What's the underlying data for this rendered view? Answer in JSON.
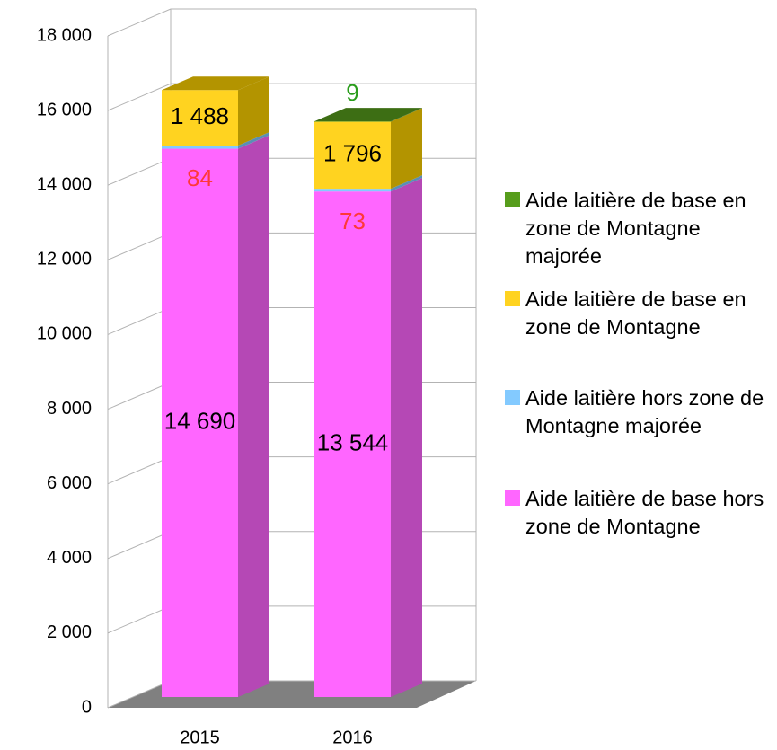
{
  "chart_data": {
    "type": "bar3d_stacked",
    "categories": [
      "2015",
      "2016"
    ],
    "series": [
      {
        "name": "Aide laitière de base hors zone de Montagne",
        "color": "#ff66ff",
        "side_color": "#b548b5",
        "label_color": "#000000",
        "values": [
          14690,
          13544
        ],
        "value_labels": [
          "14 690",
          "13 544"
        ]
      },
      {
        "name": "Aide laitière hors zone de Montagne majorée",
        "color": "#83caff",
        "side_color": "#5a8fb5",
        "label_color": "#ff3838",
        "values": [
          84,
          73
        ]
      },
      {
        "name": "Aide laitière de base en zone de Montagne",
        "color": "#ffd320",
        "side_color": "#b39400",
        "label_color": "#000000",
        "values": [
          1488,
          1796
        ],
        "value_labels": [
          "1 488",
          "1 796"
        ]
      },
      {
        "name": "Aide laitière de base en zone de Montagne majorée",
        "color": "#579d1c",
        "side_color": "#3d6e14",
        "label_color": "#2a9d1c",
        "values": [
          null,
          9
        ]
      }
    ],
    "ylim": [
      0,
      18000
    ],
    "yticks": [
      0,
      {
        "value": 2000,
        "label": "2 000"
      },
      {
        "value": 4000,
        "label": "4 000"
      },
      {
        "value": 6000,
        "label": "6 000"
      },
      {
        "value": 8000,
        "label": "8 000"
      },
      {
        "value": 10000,
        "label": "10 000"
      },
      {
        "value": 12000,
        "label": "12 000"
      },
      {
        "value": 14000,
        "label": "14 000"
      },
      {
        "value": 16000,
        "label": "16 000"
      },
      {
        "value": 18000,
        "label": "18 000"
      }
    ],
    "grid": true,
    "legend": "right"
  }
}
